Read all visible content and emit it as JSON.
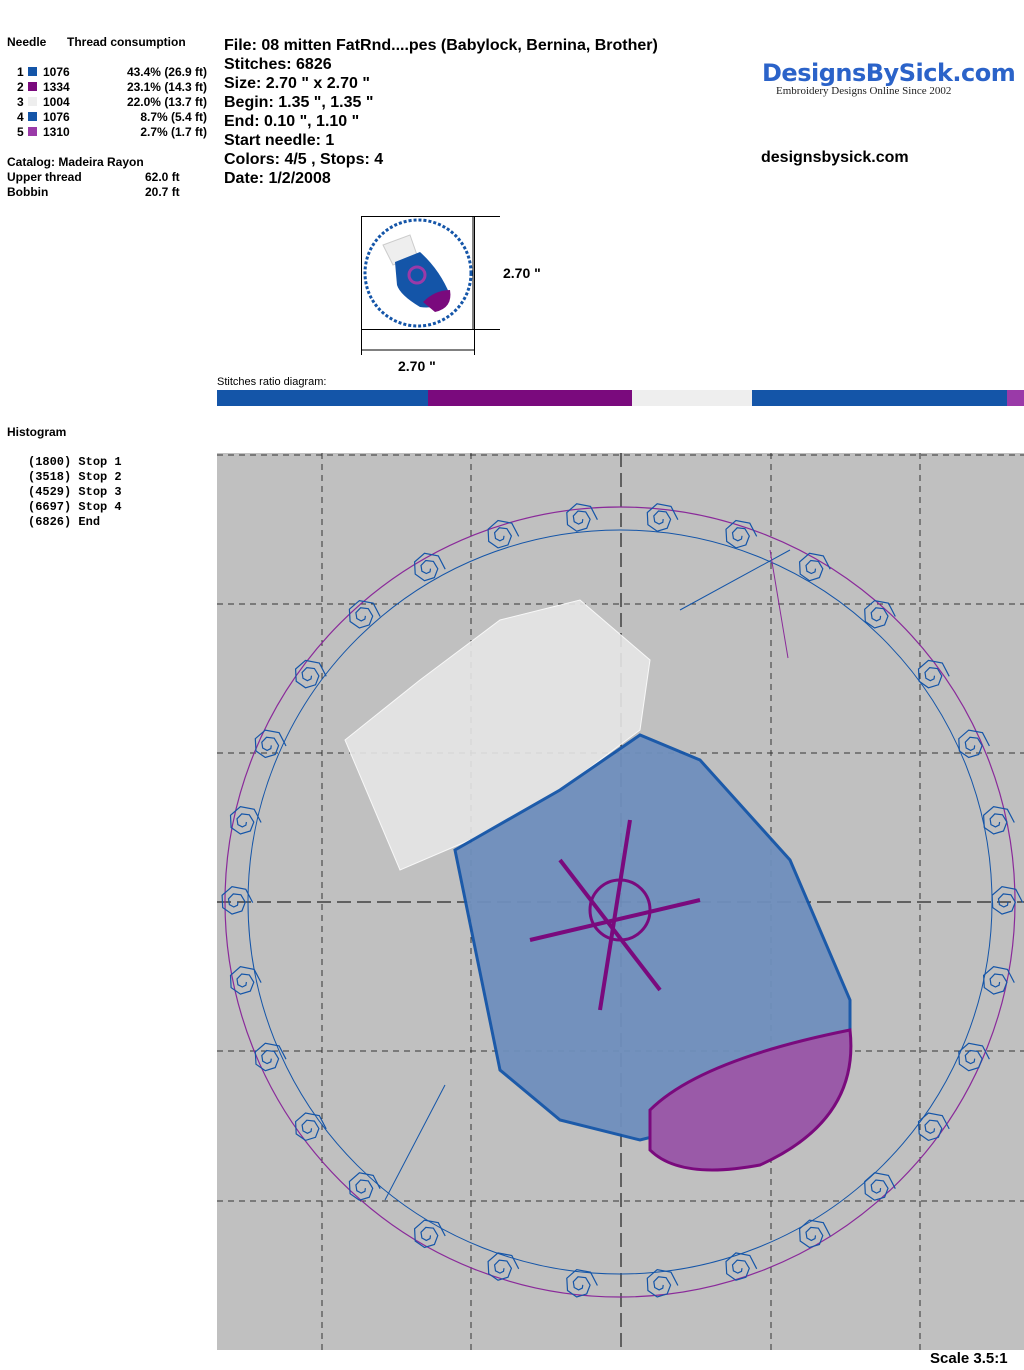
{
  "thread_table": {
    "needle_header": "Needle",
    "consumption_header": "Thread consumption",
    "rows": [
      {
        "needle": "1",
        "code": "1076",
        "consumption": "43.4% (26.9 ft)",
        "color": "#1455a8"
      },
      {
        "needle": "2",
        "code": "1334",
        "consumption": "23.1% (14.3 ft)",
        "color": "#7a0a7d"
      },
      {
        "needle": "3",
        "code": "1004",
        "consumption": "22.0% (13.7 ft)",
        "color": "#eeeeee"
      },
      {
        "needle": "4",
        "code": "1076",
        "consumption": "8.7% (5.4 ft)",
        "color": "#1455a8"
      },
      {
        "needle": "5",
        "code": "1310",
        "consumption": "2.7% (1.7 ft)",
        "color": "#9a3aa8"
      }
    ],
    "catalog": "Catalog: Madeira Rayon",
    "upper_label": "Upper thread",
    "upper_value": "62.0 ft",
    "bobbin_label": "Bobbin",
    "bobbin_value": "20.7 ft"
  },
  "info": {
    "file": "File: 08 mitten FatRnd....pes  (Babylock, Bernina, Brother)",
    "stitches": "Stitches: 6826",
    "size": "Size: 2.70 \" x 2.70 \"",
    "begin": "Begin: 1.35 \", 1.35 \"",
    "end": "End: 0.10 \", 1.10 \"",
    "start_needle": "Start needle: 1",
    "colors": "Colors: 4/5 , Stops: 4",
    "date": "Date: 1/2/2008"
  },
  "logo": {
    "brand": "DesignsBySick.com",
    "tagline": "Embroidery Designs Online Since 2002",
    "url": "designsbysick.com"
  },
  "thumbnail": {
    "height_label": "2.70 \"",
    "width_label": "2.70 \""
  },
  "ratio": {
    "label": "Stitches ratio diagram:",
    "segments": [
      {
        "color": "#1455a8",
        "percent": 26.2
      },
      {
        "color": "#7a0a7d",
        "percent": 25.2
      },
      {
        "color": "#eeeeee",
        "percent": 14.9
      },
      {
        "color": "#1455a8",
        "percent": 31.6
      },
      {
        "color": "#9a3aa8",
        "percent": 2.1
      }
    ]
  },
  "histogram": {
    "title": "Histogram",
    "stops": [
      {
        "count": "(1800)",
        "label": "Stop 1"
      },
      {
        "count": "(3518)",
        "label": "Stop 2"
      },
      {
        "count": "(4529)",
        "label": "Stop 3"
      },
      {
        "count": "(6697)",
        "label": "Stop 4"
      },
      {
        "count": "(6826)",
        "label": "End"
      }
    ]
  },
  "scale": "Scale 3.5:1"
}
